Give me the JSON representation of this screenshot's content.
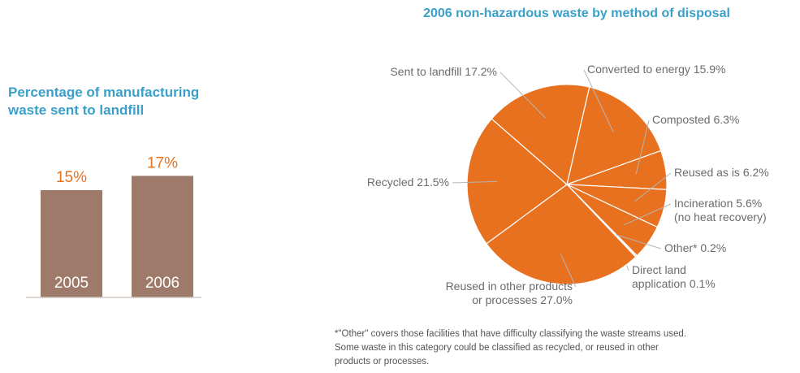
{
  "colors": {
    "accent_blue": "#3a9fc9",
    "bar_brown": "#9e7a6b",
    "pie_orange": "#e8711f",
    "label_orange": "#e8711f"
  },
  "chart_data": [
    {
      "type": "bar",
      "title_lines": [
        "Percentage of manufacturing",
        "waste sent to landfill"
      ],
      "categories": [
        "2005",
        "2006"
      ],
      "values": [
        15,
        17
      ],
      "value_labels": [
        "15%",
        "17%"
      ],
      "ylim": [
        0,
        20
      ]
    },
    {
      "type": "pie",
      "title": "2006 non-hazardous waste by method of disposal",
      "slices": [
        {
          "label_lines": [
            "Converted to energy 15.9%"
          ],
          "value": 15.9
        },
        {
          "label_lines": [
            "Composted 6.3%"
          ],
          "value": 6.3
        },
        {
          "label_lines": [
            "Reused as is 6.2%"
          ],
          "value": 6.2
        },
        {
          "label_lines": [
            "Incineration 5.6%",
            "(no heat recovery)"
          ],
          "value": 5.6
        },
        {
          "label_lines": [
            "Other* 0.2%"
          ],
          "value": 0.2
        },
        {
          "label_lines": [
            "Direct land",
            "application 0.1%"
          ],
          "value": 0.1
        },
        {
          "label_lines": [
            "Reused in other products",
            "or processes 27.0%"
          ],
          "value": 27.0
        },
        {
          "label_lines": [
            "Recycled 21.5%"
          ],
          "value": 21.5
        },
        {
          "label_lines": [
            "Sent to landfill 17.2%"
          ],
          "value": 17.2
        }
      ],
      "footnote_lines": [
        "*\"Other\" covers those facilities that have difficulty classifying the waste streams used.",
        "Some waste in this category could be classified as recycled, or reused in other",
        "products or processes."
      ]
    }
  ]
}
